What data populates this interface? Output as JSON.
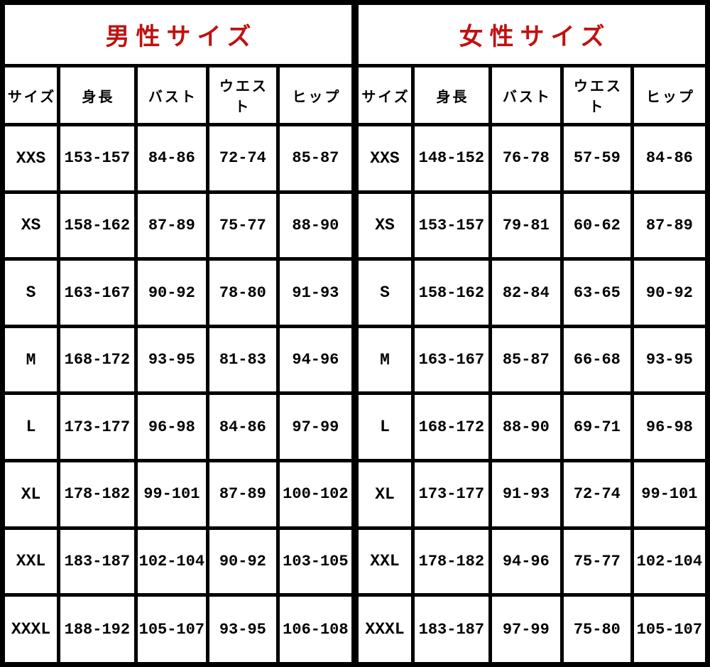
{
  "colors": {
    "title_red": "#c01111",
    "border_black": "#000000",
    "background": "#ffffff",
    "data_text": "#000000"
  },
  "chart_data": [
    {
      "type": "table",
      "title": "男性サイズ",
      "columns": [
        "サイズ",
        "身長",
        "バスト",
        "ウエスト",
        "ヒップ"
      ],
      "rows": [
        [
          "XXS",
          "153-157",
          "84-86",
          "72-74",
          "85-87"
        ],
        [
          "XS",
          "158-162",
          "87-89",
          "75-77",
          "88-90"
        ],
        [
          "S",
          "163-167",
          "90-92",
          "78-80",
          "91-93"
        ],
        [
          "M",
          "168-172",
          "93-95",
          "81-83",
          "94-96"
        ],
        [
          "L",
          "173-177",
          "96-98",
          "84-86",
          "97-99"
        ],
        [
          "XL",
          "178-182",
          "99-101",
          "87-89",
          "100-102"
        ],
        [
          "XXL",
          "183-187",
          "102-104",
          "90-92",
          "103-105"
        ],
        [
          "XXXL",
          "188-192",
          "105-107",
          "93-95",
          "106-108"
        ]
      ]
    },
    {
      "type": "table",
      "title": "女性サイズ",
      "columns": [
        "サイズ",
        "身長",
        "バスト",
        "ウエスト",
        "ヒップ"
      ],
      "rows": [
        [
          "XXS",
          "148-152",
          "76-78",
          "57-59",
          "84-86"
        ],
        [
          "XS",
          "153-157",
          "79-81",
          "60-62",
          "87-89"
        ],
        [
          "S",
          "158-162",
          "82-84",
          "63-65",
          "90-92"
        ],
        [
          "M",
          "163-167",
          "85-87",
          "66-68",
          "93-95"
        ],
        [
          "L",
          "168-172",
          "88-90",
          "69-71",
          "96-98"
        ],
        [
          "XL",
          "173-177",
          "91-93",
          "72-74",
          "99-101"
        ],
        [
          "XXL",
          "178-182",
          "94-96",
          "75-77",
          "102-104"
        ],
        [
          "XXXL",
          "183-187",
          "97-99",
          "75-80",
          "105-107"
        ]
      ]
    }
  ]
}
